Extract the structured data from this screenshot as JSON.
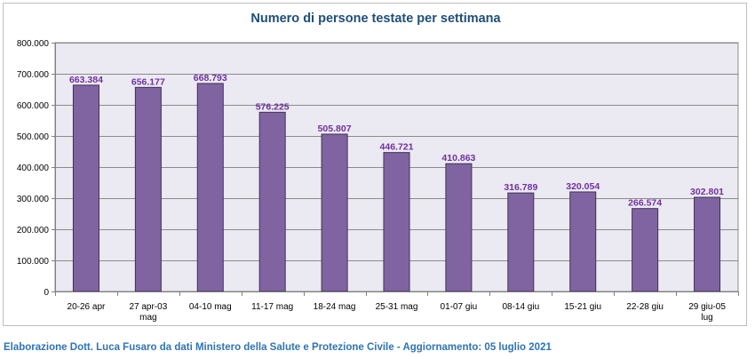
{
  "chart_data": {
    "type": "bar",
    "title": "Numero di persone testate per settimana",
    "xlabel": "",
    "ylabel": "",
    "categories": [
      "20-26 apr",
      "27 apr-03 mag",
      "04-10 mag",
      "11-17 mag",
      "18-24 mag",
      "25-31 mag",
      "01-07 giu",
      "08-14 giu",
      "15-21 giu",
      "22-28 giu",
      "29 giu-05 lug"
    ],
    "values": [
      663384,
      656177,
      668793,
      576225,
      505807,
      446721,
      410863,
      316789,
      320054,
      266574,
      302801
    ],
    "value_labels": [
      "663.384",
      "656.177",
      "668.793",
      "576.225",
      "505.807",
      "446.721",
      "410.863",
      "316.789",
      "320.054",
      "266.574",
      "302.801"
    ],
    "ylim": [
      0,
      800000
    ],
    "yticks": [
      0,
      100000,
      200000,
      300000,
      400000,
      500000,
      600000,
      700000,
      800000
    ],
    "ytick_labels": [
      "0",
      "100.000",
      "200.000",
      "300.000",
      "400.000",
      "500.000",
      "600.000",
      "700.000",
      "800.000"
    ],
    "grid": true,
    "legend": "none",
    "bar_color": "#8064a2",
    "bar_edge_color": "#3f3151",
    "plot_background": "#ebe9f1",
    "label_color": "#7030a0",
    "title_color": "#1f4e79"
  },
  "footer": {
    "credit": "Elaborazione Dott. Luca Fusaro da dati Ministero della Salute e Protezione Civile - Aggiornamento: 05 luglio 2021",
    "color": "#2e74b5"
  }
}
